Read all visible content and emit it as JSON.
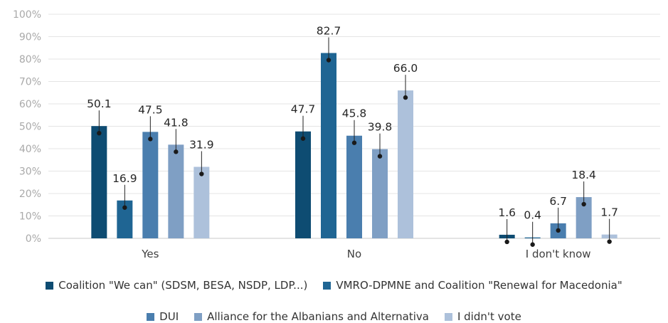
{
  "chart_data": {
    "type": "bar",
    "categories": [
      "Yes",
      "No",
      "I don't know"
    ],
    "series": [
      {
        "name": "Coalition \"We can\" (SDSM, BESA, NSDP, LDP...)",
        "color": "#0e4c72",
        "values": [
          50.1,
          47.7,
          1.6
        ],
        "labels": [
          "50.1",
          "47.7",
          "1.6"
        ]
      },
      {
        "name": "VMRO-DPMNE and Coalition \"Renewal for Macedonia\"",
        "color": "#1f6593",
        "values": [
          16.9,
          82.7,
          0.4
        ],
        "labels": [
          "16.9",
          "82.7",
          "0.4"
        ]
      },
      {
        "name": "DUI",
        "color": "#4a7eae",
        "values": [
          47.5,
          45.8,
          6.7
        ],
        "labels": [
          "47.5",
          "45.8",
          "6.7"
        ]
      },
      {
        "name": "Alliance for the Albanians and Alternativa",
        "color": "#7f9fc4",
        "values": [
          41.8,
          39.8,
          18.4
        ],
        "labels": [
          "41.8",
          "39.8",
          "18.4"
        ]
      },
      {
        "name": "I didn't vote",
        "color": "#adc1db",
        "values": [
          31.9,
          66.0,
          1.7
        ],
        "labels": [
          "31.9",
          "66.0",
          "1.7"
        ]
      }
    ],
    "y_ticks": [
      "0%",
      "10%",
      "20%",
      "30%",
      "40%",
      "50%",
      "60%",
      "70%",
      "80%",
      "90%",
      "100%"
    ],
    "ylim": [
      0,
      100
    ],
    "grid": true,
    "legend_position": "bottom"
  },
  "legend": {
    "row1": [
      {
        "label": "Coalition \"We can\" (SDSM, BESA, NSDP, LDP...)",
        "color": "#0e4c72"
      },
      {
        "label": "VMRO-DPMNE and Coalition \"Renewal for Macedonia\"",
        "color": "#1f6593"
      }
    ],
    "row2": [
      {
        "label": "DUI",
        "color": "#4a7eae"
      },
      {
        "label": "Alliance for the Albanians and Alternativa",
        "color": "#7f9fc4"
      },
      {
        "label": "I didn't vote",
        "color": "#adc1db"
      }
    ]
  }
}
